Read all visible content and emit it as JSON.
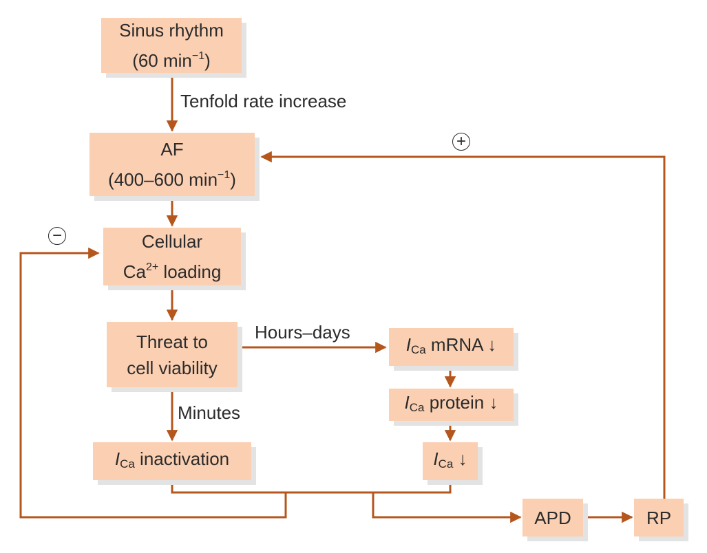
{
  "nodes": {
    "sinus": {
      "line1": "Sinus rhythm",
      "line2_text": "(60 min",
      "line2_sup": "−1",
      "line2_end": ")"
    },
    "af": {
      "line1": "AF",
      "line2_text": "(400–600 min",
      "line2_sup": "−1",
      "line2_end": ")"
    },
    "ca_loading": {
      "line1": "Cellular",
      "line2_prefix": "Ca",
      "line2_sup": "2+",
      "line2_text": " loading"
    },
    "threat": {
      "line1": "Threat to",
      "line2": "cell viability"
    },
    "ica_inactivation": {
      "italic": "I",
      "sub": "Ca",
      "text": " inactivation"
    },
    "ica_mrna": {
      "italic": "I",
      "sub": "Ca",
      "text": " mRNA ↓"
    },
    "ica_protein": {
      "italic": "I",
      "sub": "Ca",
      "text": " protein ↓"
    },
    "ica_down": {
      "italic": "I",
      "sub": "Ca",
      "text": " ↓"
    },
    "apd": {
      "label": "APD"
    },
    "rp": {
      "label": "RP"
    }
  },
  "edge_labels": {
    "tenfold": "Tenfold rate increase",
    "hours_days": "Hours–days",
    "minutes": "Minutes"
  },
  "feedback": {
    "positive": "+",
    "negative": "−"
  },
  "colors": {
    "box_fill": "#fbcfb2",
    "arrow": "#b5561c",
    "shadow": "#e3e3e3"
  }
}
